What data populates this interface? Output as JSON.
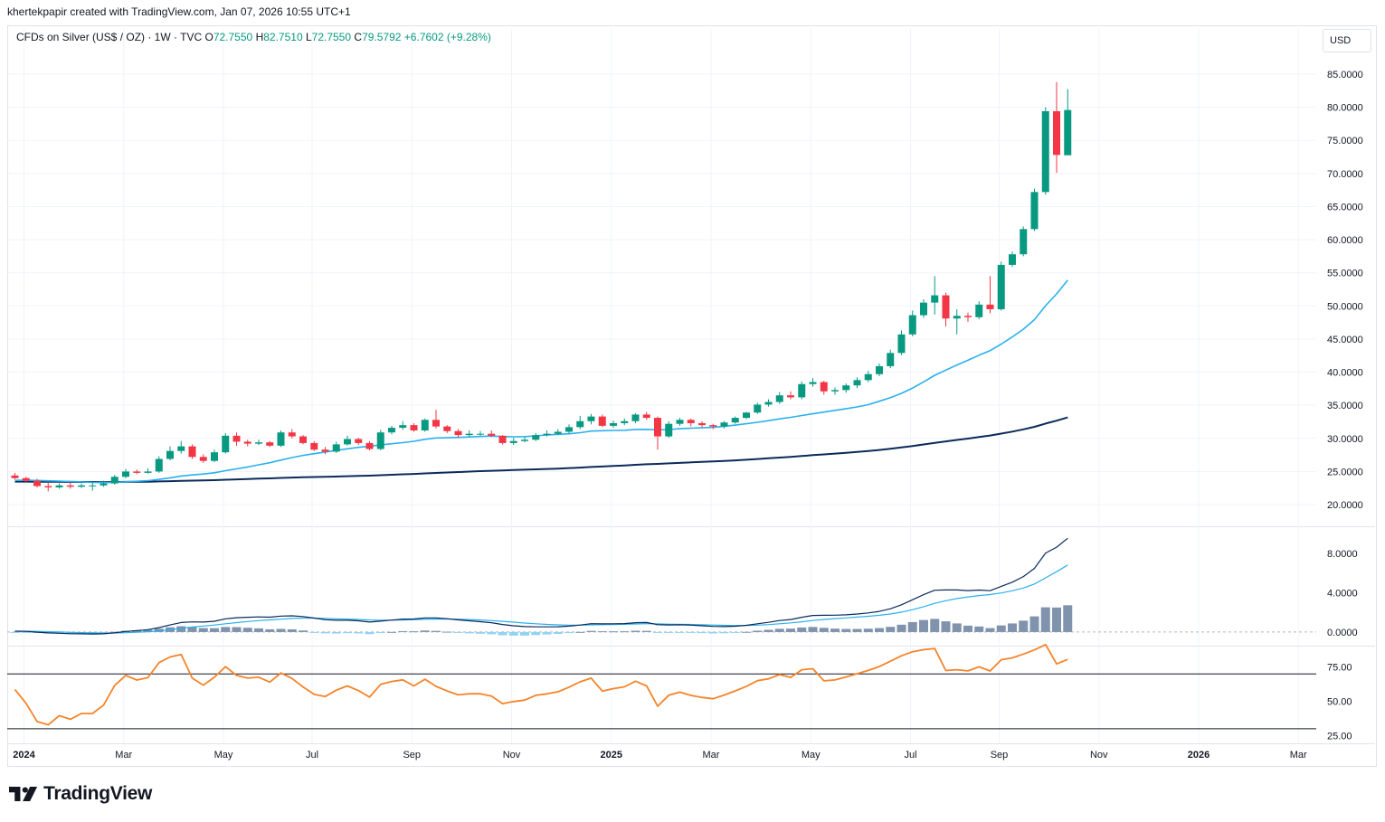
{
  "header": {
    "attribution": "khertekpapir created with TradingView.com, Jan 07, 2026 10:55 UTC+1"
  },
  "legend": {
    "symbol": "CFDs on Silver (US$ / OZ) · 1W · TVC",
    "open_label": "O",
    "open": "72.7550",
    "high_label": "H",
    "high": "82.7510",
    "low_label": "L",
    "low": "72.7550",
    "close_label": "C",
    "close": "79.5792",
    "change": "+6.7602 (+9.28%)"
  },
  "currency_button": "USD",
  "footer": {
    "brand": "TradingView"
  },
  "colors": {
    "up": "#089981",
    "down": "#f23645",
    "ma_fast": "#2ab0ee",
    "ma_slow": "#0b2a5a",
    "macd_line": "#0b2a5a",
    "macd_signal": "#2ab0ee",
    "hist_pos": "#7f93ad",
    "hist_neg": "#8fd3f4",
    "rsi": "#f5842a",
    "grid": "#f0f3fa"
  },
  "chart_data": [
    {
      "type": "candlestick",
      "title": "CFDs on Silver (US$ / OZ) · 1W · TVC",
      "y_axis_ticks": [
        "85.0000",
        "80.0000",
        "75.0000",
        "70.0000",
        "65.0000",
        "60.0000",
        "55.0000",
        "50.0000",
        "45.0000",
        "40.0000",
        "35.0000",
        "30.0000",
        "25.0000",
        "20.0000"
      ],
      "ylim": [
        17,
        88
      ],
      "x_axis_ticks": [
        {
          "label": "2024",
          "week": 0,
          "bold": true
        },
        {
          "label": "Mar",
          "week": 9,
          "bold": false
        },
        {
          "label": "May",
          "week": 18,
          "bold": false
        },
        {
          "label": "Jul",
          "week": 26,
          "bold": false
        },
        {
          "label": "Sep",
          "week": 35,
          "bold": false
        },
        {
          "label": "Nov",
          "week": 44,
          "bold": false
        },
        {
          "label": "2025",
          "week": 53,
          "bold": true
        },
        {
          "label": "Mar",
          "week": 62,
          "bold": false
        },
        {
          "label": "May",
          "week": 71,
          "bold": false
        },
        {
          "label": "Jul",
          "week": 80,
          "bold": false
        },
        {
          "label": "Sep",
          "week": 88,
          "bold": false
        },
        {
          "label": "Nov",
          "week": 97,
          "bold": false
        },
        {
          "label": "2026",
          "week": 106,
          "bold": true
        },
        {
          "label": "Mar",
          "week": 115,
          "bold": false
        }
      ],
      "closes": [
        24.0,
        23.6,
        22.8,
        22.6,
        22.9,
        22.7,
        22.9,
        22.9,
        23.2,
        24.2,
        25.0,
        24.8,
        25.0,
        26.9,
        28.1,
        28.8,
        27.2,
        26.6,
        27.9,
        30.4,
        29.5,
        29.2,
        29.4,
        28.9,
        30.9,
        30.3,
        29.3,
        28.3,
        28.0,
        29.1,
        29.9,
        29.3,
        28.4,
        30.9,
        31.6,
        32.0,
        31.2,
        32.8,
        31.8,
        31.1,
        30.5,
        30.7,
        30.7,
        30.4,
        29.3,
        29.6,
        29.8,
        30.5,
        30.7,
        31.0,
        31.7,
        32.6,
        33.3,
        31.9,
        32.3,
        32.6,
        33.6,
        33.1,
        30.3,
        32.2,
        32.8,
        32.3,
        32.0,
        31.8,
        32.4,
        33.1,
        33.9,
        35.1,
        35.5,
        36.5,
        36.2,
        38.2,
        38.5,
        37.1,
        37.3,
        38.0,
        38.8,
        39.7,
        40.9,
        42.9,
        45.7,
        48.6,
        50.5,
        51.6,
        48.1,
        48.5,
        48.3,
        50.2,
        49.5,
        56.2,
        57.8,
        61.6,
        67.2,
        79.4,
        72.8,
        79.58
      ],
      "opens": [
        24.4,
        24.0,
        23.6,
        22.8,
        22.6,
        22.9,
        22.7,
        22.9,
        22.9,
        23.2,
        24.2,
        25.0,
        24.8,
        25.0,
        26.9,
        28.1,
        28.8,
        27.2,
        26.6,
        27.9,
        30.4,
        29.5,
        29.2,
        29.4,
        28.9,
        30.9,
        30.3,
        29.3,
        28.3,
        28.0,
        29.1,
        29.9,
        29.3,
        28.4,
        30.9,
        31.6,
        32.0,
        31.2,
        32.8,
        31.8,
        31.1,
        30.5,
        30.7,
        30.7,
        30.4,
        29.3,
        29.6,
        29.8,
        30.5,
        30.7,
        31.0,
        31.7,
        32.6,
        33.3,
        31.9,
        32.3,
        32.6,
        33.6,
        33.1,
        30.3,
        32.2,
        32.8,
        32.3,
        32.0,
        31.8,
        32.4,
        33.1,
        33.9,
        35.1,
        35.5,
        36.5,
        36.2,
        38.2,
        38.5,
        37.1,
        37.3,
        38.0,
        38.8,
        39.7,
        40.9,
        42.9,
        45.7,
        48.6,
        50.5,
        51.6,
        48.1,
        48.5,
        48.3,
        50.2,
        49.5,
        56.2,
        57.8,
        61.6,
        67.2,
        79.4,
        72.755
      ],
      "highs": [
        24.8,
        24.2,
        23.9,
        23.3,
        23.2,
        23.3,
        23.2,
        23.4,
        23.6,
        24.5,
        25.4,
        25.3,
        25.5,
        27.3,
        28.8,
        29.6,
        29.1,
        27.6,
        28.3,
        30.8,
        30.9,
        29.8,
        29.8,
        29.6,
        31.2,
        31.4,
        30.5,
        29.6,
        28.7,
        29.5,
        30.4,
        30.1,
        29.6,
        31.3,
        31.9,
        32.6,
        32.3,
        33.0,
        34.3,
        32.0,
        31.4,
        31.2,
        31.1,
        31.2,
        30.5,
        30.1,
        30.2,
        30.8,
        31.2,
        31.4,
        32.1,
        33.4,
        33.7,
        33.6,
        32.7,
        33.0,
        33.8,
        34.0,
        33.3,
        32.6,
        33.1,
        33.0,
        32.6,
        32.2,
        32.6,
        33.3,
        34.0,
        35.4,
        35.9,
        37.0,
        37.1,
        38.6,
        39.1,
        38.7,
        37.7,
        38.3,
        39.2,
        40.2,
        41.3,
        43.4,
        46.3,
        49.3,
        51.0,
        54.5,
        52.0,
        49.5,
        49.0,
        50.7,
        54.5,
        56.7,
        58.2,
        62.0,
        67.7,
        80.0,
        83.8,
        82.75
      ],
      "lows": [
        23.8,
        23.4,
        22.6,
        22.0,
        22.4,
        22.4,
        22.5,
        22.1,
        22.7,
        23.0,
        24.0,
        24.6,
        24.7,
        24.8,
        26.7,
        27.7,
        26.9,
        26.3,
        26.4,
        27.7,
        28.9,
        28.8,
        29.0,
        28.7,
        28.7,
        30.0,
        29.1,
        28.1,
        27.6,
        27.8,
        28.9,
        29.0,
        28.2,
        28.2,
        30.6,
        31.3,
        31.0,
        31.0,
        31.5,
        30.8,
        30.1,
        30.3,
        30.4,
        30.2,
        29.1,
        29.0,
        29.4,
        29.6,
        30.3,
        30.5,
        30.7,
        31.4,
        32.1,
        31.7,
        31.6,
        32.0,
        32.3,
        32.8,
        28.3,
        30.1,
        31.9,
        31.8,
        31.7,
        31.4,
        31.5,
        32.2,
        32.9,
        33.7,
        34.8,
        35.2,
        35.9,
        35.9,
        37.8,
        36.6,
        36.6,
        36.9,
        37.6,
        38.5,
        39.4,
        40.6,
        42.6,
        45.4,
        48.2,
        48.7,
        46.9,
        45.7,
        47.6,
        48.0,
        48.9,
        49.3,
        55.9,
        57.5,
        61.3,
        66.8,
        70.1,
        72.755
      ],
      "series": [
        {
          "name": "",
          "kind": "line",
          "color": "#2ab0ee"
        },
        {
          "name": "",
          "kind": "line",
          "color": "#0b2a5a"
        }
      ]
    },
    {
      "type": "macd",
      "y_axis_ticks": [
        "8.0000",
        "4.0000",
        "0.0000"
      ],
      "ylim": [
        -1.2,
        10
      ]
    },
    {
      "type": "rsi",
      "y_axis_ticks": [
        "75.00",
        "50.00",
        "25.00"
      ],
      "ylim": [
        22,
        88
      ],
      "bands": [
        70,
        30
      ]
    }
  ]
}
